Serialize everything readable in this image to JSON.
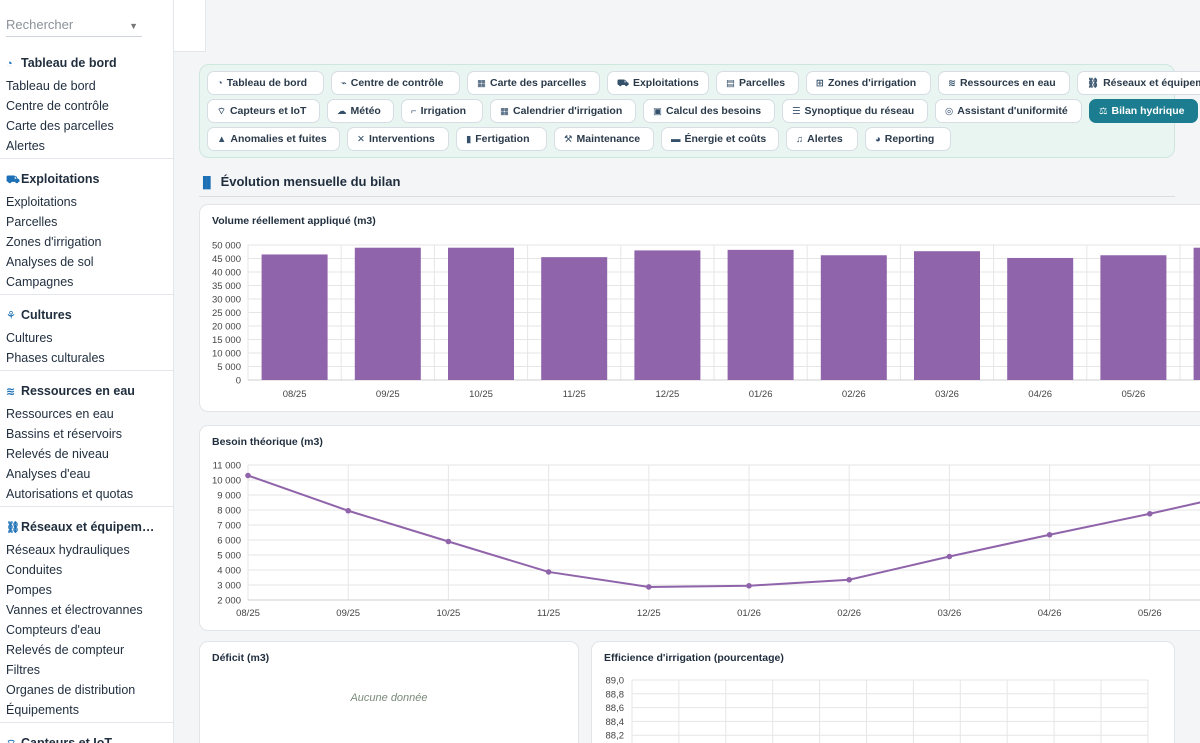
{
  "sidebar": {
    "search_placeholder": "Rechercher",
    "groups": [
      {
        "title": "Tableau de bord",
        "icon": "gauge-icon",
        "items": [
          "Tableau de bord",
          "Centre de contrôle",
          "Carte des parcelles",
          "Alertes"
        ]
      },
      {
        "title": "Exploitations",
        "icon": "tractor-icon",
        "items": [
          "Exploitations",
          "Parcelles",
          "Zones d'irrigation",
          "Analyses de sol",
          "Campagnes"
        ]
      },
      {
        "title": "Cultures",
        "icon": "seedling-icon",
        "items": [
          "Cultures",
          "Phases culturales"
        ]
      },
      {
        "title": "Ressources en eau",
        "icon": "water-icon",
        "items": [
          "Ressources en eau",
          "Bassins et réservoirs",
          "Relevés de niveau",
          "Analyses d'eau",
          "Autorisations et quotas"
        ]
      },
      {
        "title": "Réseaux et équipem…",
        "icon": "network-icon",
        "items": [
          "Réseaux hydrauliques",
          "Conduites",
          "Pompes",
          "Vannes et électrovannes",
          "Compteurs d'eau",
          "Relevés de compteur",
          "Filtres",
          "Organes de distribution",
          "Équipements"
        ]
      },
      {
        "title": "Capteurs et IoT",
        "icon": "sensor-icon",
        "items": []
      }
    ]
  },
  "nav": {
    "rows": [
      [
        {
          "label": "Tableau de bord",
          "icon": "gauge-icon"
        },
        {
          "label": "Centre de contrôle",
          "icon": "satellite-icon"
        },
        {
          "label": "Carte des parcelles",
          "icon": "map-grid-icon"
        },
        {
          "label": "Exploitations",
          "icon": "tractor-icon"
        },
        {
          "label": "Parcelles",
          "icon": "map-icon"
        },
        {
          "label": "Zones d'irrigation",
          "icon": "sitemap-icon"
        },
        {
          "label": "Ressources en eau",
          "icon": "water-icon"
        },
        {
          "label": "Réseaux et équipements",
          "icon": "network-icon"
        }
      ],
      [
        {
          "label": "Capteurs et IoT",
          "icon": "sensor-icon"
        },
        {
          "label": "Météo",
          "icon": "cloud-sun-icon"
        },
        {
          "label": "Irrigation",
          "icon": "faucet-icon"
        },
        {
          "label": "Calendrier d'irrigation",
          "icon": "calendar-icon"
        },
        {
          "label": "Calcul des besoins",
          "icon": "calculator-icon"
        },
        {
          "label": "Synoptique du réseau",
          "icon": "list-icon"
        },
        {
          "label": "Assistant d'uniformité",
          "icon": "bullseye-icon"
        },
        {
          "label": "Bilan hydrique",
          "icon": "scale-icon",
          "active": true
        }
      ],
      [
        {
          "label": "Anomalies et fuites",
          "icon": "warning-icon"
        },
        {
          "label": "Interventions",
          "icon": "tools-icon"
        },
        {
          "label": "Fertigation",
          "icon": "flask-icon"
        },
        {
          "label": "Maintenance",
          "icon": "wrench-icon"
        },
        {
          "label": "Énergie et coûts",
          "icon": "money-icon"
        },
        {
          "label": "Alertes",
          "icon": "bell-icon"
        },
        {
          "label": "Reporting",
          "icon": "pie-icon"
        }
      ]
    ]
  },
  "section": {
    "title": "Évolution mensuelle du bilan",
    "icon": "chart-icon"
  },
  "colors": {
    "series": "#9064aa",
    "active_pill": "#1b7d8f"
  },
  "chart_data": [
    {
      "type": "bar",
      "title": "Volume réellement appliqué (m3)",
      "categories": [
        "08/25",
        "09/25",
        "10/25",
        "11/25",
        "12/25",
        "01/26",
        "02/26",
        "03/26",
        "04/26",
        "05/26"
      ],
      "values": [
        46500,
        49000,
        49000,
        45500,
        48000,
        48200,
        46200,
        47700,
        45200,
        46200
      ],
      "ylim": [
        0,
        50000
      ],
      "yticks": [
        "50 000",
        "45 000",
        "40 000",
        "35 000",
        "30 000",
        "25 000",
        "20 000",
        "15 000",
        "10 000",
        "5 000",
        "0"
      ],
      "grid": true
    },
    {
      "type": "line",
      "title": "Besoin théorique (m3)",
      "categories": [
        "08/25",
        "09/25",
        "10/25",
        "11/25",
        "12/25",
        "01/26",
        "02/26",
        "03/26",
        "04/26",
        "05/26"
      ],
      "values": [
        10300,
        7950,
        5900,
        3870,
        2870,
        2950,
        3350,
        4900,
        6350,
        7750
      ],
      "ylim": [
        2000,
        11000
      ],
      "yticks": [
        "11 000",
        "10 000",
        "9 000",
        "8 000",
        "7 000",
        "6 000",
        "5 000",
        "4 000",
        "3 000",
        "2 000"
      ],
      "grid": true
    },
    {
      "type": "bar",
      "title": "Déficit (m3)",
      "empty_text": "Aucune donnée"
    },
    {
      "type": "line",
      "title": "Efficience d'irrigation (pourcentage)",
      "yticks": [
        "89,0",
        "88,8",
        "88,6",
        "88,4",
        "88,2"
      ],
      "grid": true
    }
  ]
}
